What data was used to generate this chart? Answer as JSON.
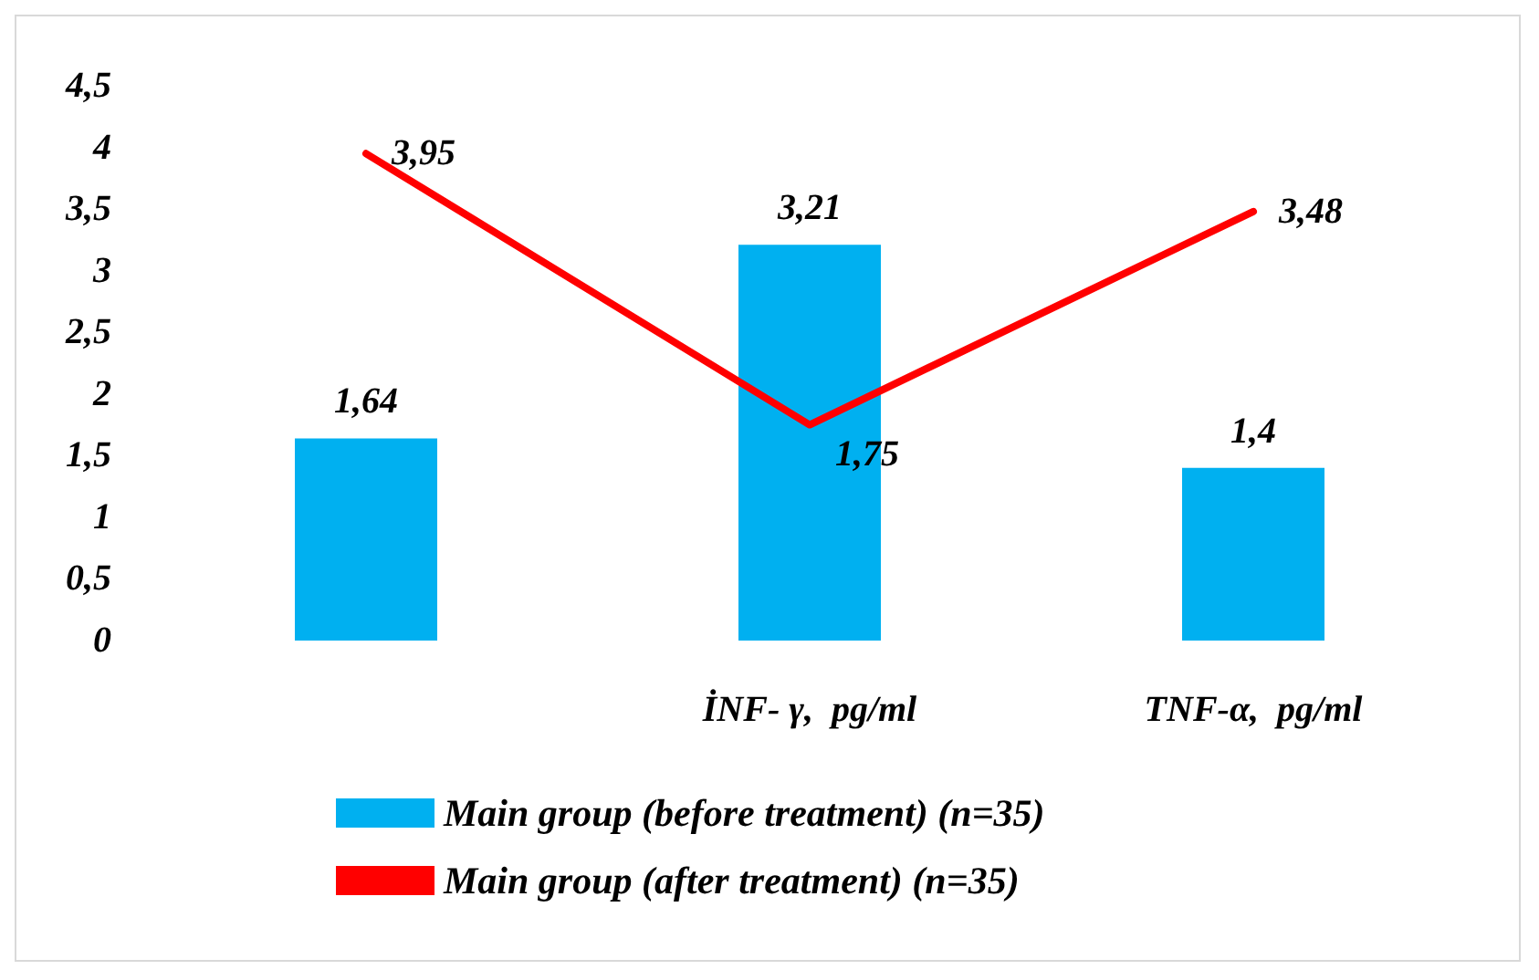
{
  "chart_data": {
    "type": "bar",
    "categories": [
      null,
      "İNF- γ,  pg/ml",
      "TNF-α,  pg/ml"
    ],
    "series": [
      {
        "name": "Main group (before treatment) (n=35)",
        "color": "#00b0f0",
        "values": [
          1.64,
          3.21,
          1.4
        ],
        "value_labels": [
          "1,64",
          "3,21",
          "1,4"
        ]
      },
      {
        "name": "Main group (after treatment) (n=35)",
        "type": "line",
        "color": "#ff0000",
        "values": [
          3.95,
          1.75,
          3.48
        ],
        "value_labels": [
          "3,95",
          "1,75",
          "3,48"
        ],
        "marker": "none"
      }
    ],
    "ylim": [
      0,
      4.5
    ],
    "yticks": [
      0,
      {
        "value": 0.5,
        "label": "0,5"
      },
      1,
      {
        "value": 1.5,
        "label": "1,5"
      },
      2,
      {
        "value": 2.5,
        "label": "2,5"
      },
      3,
      {
        "value": 3.5,
        "label": "3,5"
      },
      4,
      {
        "value": 4.5,
        "label": "4,5"
      }
    ],
    "grid": false,
    "legend": "bottom"
  }
}
